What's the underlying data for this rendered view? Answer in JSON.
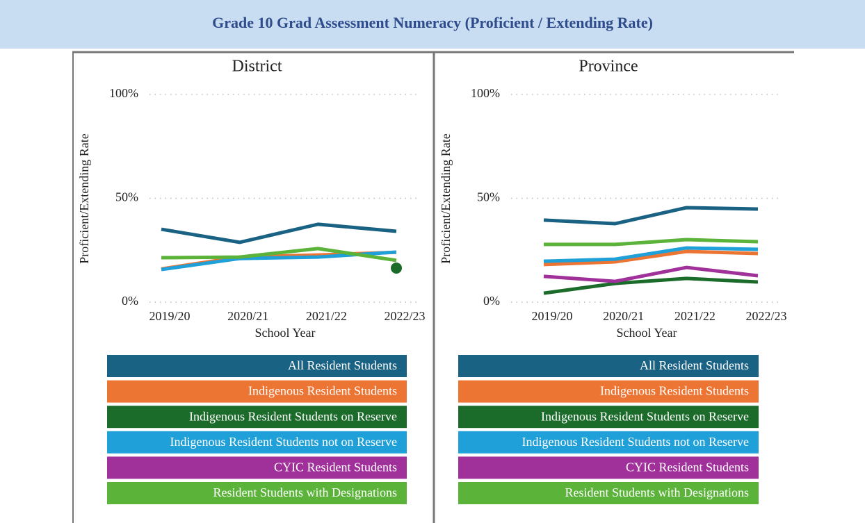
{
  "title": "Grade 10 Grad Assessment Numeracy (Proficient / Extending Rate)",
  "chart_data": [
    {
      "type": "line",
      "title": "District",
      "xlabel": "School Year",
      "ylabel": "Proficient/Extending Rate",
      "categories": [
        "2019/20",
        "2020/21",
        "2021/22",
        "2022/23"
      ],
      "ylim": [
        0,
        100
      ],
      "yticks": [
        {
          "value": 0,
          "label": "0%"
        },
        {
          "value": 50,
          "label": "50%"
        },
        {
          "value": 100,
          "label": "100%"
        }
      ],
      "grid": true,
      "series": [
        {
          "name": "All Resident Students",
          "color": "#1a6283",
          "values": [
            35.1,
            28.8,
            37.5,
            34.1
          ]
        },
        {
          "name": "Indigenous Resident Students",
          "color": "#ed7534",
          "values": [
            16,
            21.7,
            22.7,
            24
          ]
        },
        {
          "name": "Indigenous Resident Students on Reserve",
          "color": "#1b6b2a",
          "values": [
            null,
            null,
            null,
            16.4
          ]
        },
        {
          "name": "Indigenous Resident Students not on Reserve",
          "color": "#1fa0d8",
          "values": [
            15.7,
            21,
            21.7,
            24.1
          ]
        },
        {
          "name": "CYIC Resident Students",
          "color": "#a0309a",
          "values": [
            null,
            null,
            null,
            null
          ]
        },
        {
          "name": "Resident Students with Designations",
          "color": "#5cb33a",
          "values": [
            21.4,
            21.7,
            25.8,
            20.1
          ]
        }
      ]
    },
    {
      "type": "line",
      "title": "Province",
      "xlabel": "School Year",
      "ylabel": "Proficient/Extending Rate",
      "categories": [
        "2019/20",
        "2020/21",
        "2021/22",
        "2022/23"
      ],
      "ylim": [
        0,
        100
      ],
      "yticks": [
        {
          "value": 0,
          "label": "0%"
        },
        {
          "value": 50,
          "label": "50%"
        },
        {
          "value": 100,
          "label": "100%"
        }
      ],
      "grid": true,
      "series": [
        {
          "name": "All Resident Students",
          "color": "#1a6283",
          "values": [
            39.5,
            37.8,
            45.5,
            44.8
          ]
        },
        {
          "name": "Indigenous Resident Students",
          "color": "#ed7534",
          "values": [
            18.1,
            19.4,
            24.4,
            23.4
          ]
        },
        {
          "name": "Indigenous Resident Students on Reserve",
          "color": "#1b6b2a",
          "values": [
            4.3,
            9,
            11.4,
            9.7
          ]
        },
        {
          "name": "Indigenous Resident Students not on Reserve",
          "color": "#1fa0d8",
          "values": [
            19.7,
            20.7,
            26.1,
            25.4
          ]
        },
        {
          "name": "CYIC Resident Students",
          "color": "#a0309a",
          "values": [
            12.4,
            10,
            16.7,
            12.7
          ]
        },
        {
          "name": "Resident Students with Designations",
          "color": "#5cb33a",
          "values": [
            27.8,
            27.8,
            30.1,
            29.1
          ]
        }
      ]
    }
  ]
}
